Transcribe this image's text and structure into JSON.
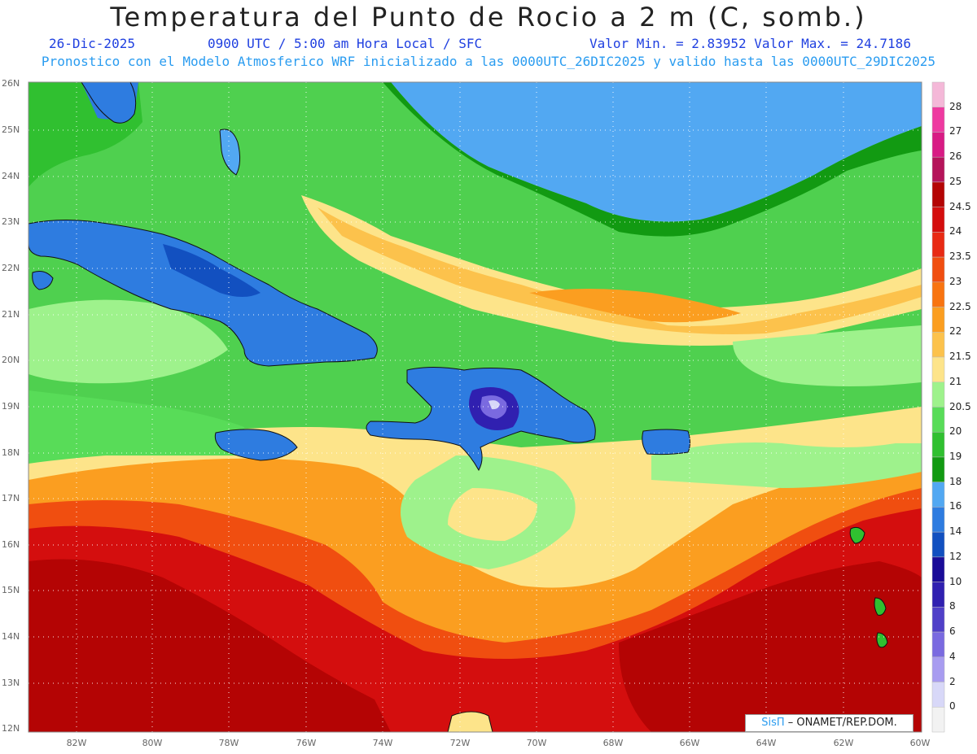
{
  "title": "Temperatura del Punto de Rocio a 2 m (C, somb.)",
  "subtitle": {
    "date": "26-Dic-2025",
    "time": "0900 UTC / 5:00 am Hora Local / SFC",
    "minmax": "Valor Min. = 2.83952  Valor Max. = 24.7186"
  },
  "model_note": "Pronostico con el Modelo Atmosferico WRF inicializado a las 0000UTC_26DIC2025 y valido hasta las  0000UTC_29DIC2025",
  "lat_labels": [
    "26N",
    "25N",
    "24N",
    "23N",
    "22N",
    "21N",
    "20N",
    "19N",
    "18N",
    "17N",
    "16N",
    "15N",
    "14N",
    "13N",
    "12N"
  ],
  "lon_labels": [
    "82W",
    "80W",
    "78W",
    "76W",
    "74W",
    "72W",
    "70W",
    "68W",
    "66W",
    "64W",
    "62W",
    "60W"
  ],
  "colorbar": [
    {
      "label": "28",
      "color": "#f4b8d8"
    },
    {
      "label": "27",
      "color": "#ee3aa0"
    },
    {
      "label": "26",
      "color": "#d81b84"
    },
    {
      "label": "25",
      "color": "#b5145a"
    },
    {
      "label": "24.5",
      "color": "#b40404"
    },
    {
      "label": "24",
      "color": "#d40e0e"
    },
    {
      "label": "23.5",
      "color": "#e82a14"
    },
    {
      "label": "23",
      "color": "#f04e10"
    },
    {
      "label": "22.5",
      "color": "#f87410"
    },
    {
      "label": "22",
      "color": "#fb9e20"
    },
    {
      "label": "21.5",
      "color": "#fcc24c"
    },
    {
      "label": "21",
      "color": "#fde48a"
    },
    {
      "label": "20.5",
      "color": "#9ef28c"
    },
    {
      "label": "20",
      "color": "#58dc58"
    },
    {
      "label": "19",
      "color": "#30c030"
    },
    {
      "label": "18",
      "color": "#129a12"
    },
    {
      "label": "16",
      "color": "#52a8f2"
    },
    {
      "label": "14",
      "color": "#2e7ce0"
    },
    {
      "label": "12",
      "color": "#1250c0"
    },
    {
      "label": "10",
      "color": "#1a0c98"
    },
    {
      "label": "8",
      "color": "#3020b0"
    },
    {
      "label": "6",
      "color": "#5040c8"
    },
    {
      "label": "4",
      "color": "#7a6ae0"
    },
    {
      "label": "2",
      "color": "#a89cf0"
    },
    {
      "label": "0",
      "color": "#d8d8f8"
    },
    {
      "label": "",
      "color": "#f2f2f2"
    }
  ],
  "credit": {
    "brand": "SisΠ",
    "text": " – ONAMET/REP.DOM."
  }
}
